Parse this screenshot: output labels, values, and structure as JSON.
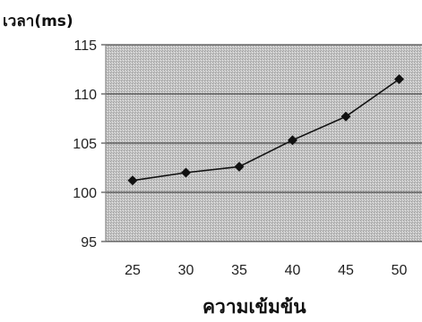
{
  "chart_data": {
    "type": "line",
    "title": "",
    "xlabel": "ความเข้มข้น",
    "ylabel": "เวลา(ms)",
    "categories": [
      "25",
      "30",
      "35",
      "40",
      "45",
      "50"
    ],
    "series": [
      {
        "values": [
          101.2,
          102.0,
          102.6,
          105.3,
          107.7,
          111.5
        ]
      }
    ],
    "ylim": [
      95,
      115
    ],
    "yticks": [
      95,
      100,
      105,
      110,
      115
    ],
    "grid": true,
    "legend": "none",
    "marker": "diamond",
    "colors": {
      "plot_background": "#c4c4c4",
      "gridline": "#2a2a2a",
      "series": "#111111",
      "tick_text": "#222222"
    }
  }
}
